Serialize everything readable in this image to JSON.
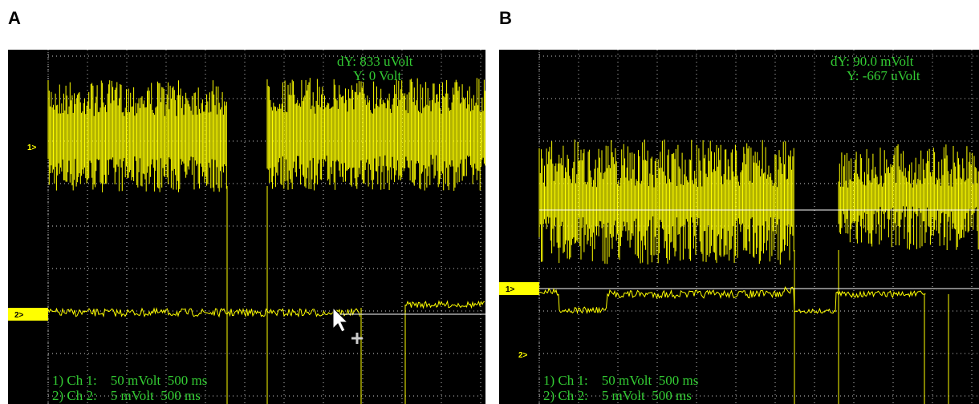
{
  "panels": [
    {
      "label": "A",
      "readout": [
        "dY: 833 uVolt",
        "Y: 0 Volt"
      ],
      "markers": [
        "1>",
        "2>"
      ],
      "channels": [
        "1) Ch 1:    50 mVolt  500 ms",
        "2) Ch 2:    5 mVolt  500 ms"
      ]
    },
    {
      "label": "B",
      "readout": [
        "dY: 90.0 mVolt",
        "Y: -667 uVolt"
      ],
      "markers": [
        "1>",
        "2>"
      ],
      "channels": [
        "1) Ch 1:    50 mVolt  500 ms",
        "2) Ch 2:    5 mVolt  500 ms"
      ]
    }
  ]
}
